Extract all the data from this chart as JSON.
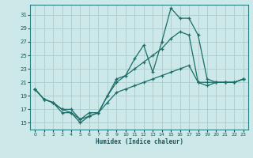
{
  "xlabel": "Humidex (Indice chaleur)",
  "background_color": "#cde8e8",
  "grid_color": "#a8cccc",
  "line_color": "#1a6e68",
  "xlim": [
    -0.5,
    23.5
  ],
  "ylim": [
    14.0,
    32.5
  ],
  "yticks": [
    15,
    17,
    19,
    21,
    23,
    25,
    27,
    29,
    31
  ],
  "xticks": [
    0,
    1,
    2,
    3,
    4,
    5,
    6,
    7,
    8,
    9,
    10,
    11,
    12,
    13,
    14,
    15,
    16,
    17,
    18,
    19,
    20,
    21,
    22,
    23
  ],
  "lines": [
    {
      "x": [
        0,
        1,
        2,
        3,
        4,
        5,
        6,
        7,
        8,
        9,
        10,
        11,
        12,
        13,
        14,
        15,
        16,
        17,
        18,
        19,
        20,
        21,
        22,
        23
      ],
      "y": [
        20,
        18.5,
        18,
        16.5,
        16.5,
        15,
        16,
        16.5,
        19,
        21.5,
        22,
        24.5,
        26.5,
        22.5,
        27,
        32,
        30.5,
        30.5,
        28,
        21.5,
        21,
        21,
        21,
        21.5
      ]
    },
    {
      "x": [
        0,
        1,
        2,
        3,
        4,
        5,
        6,
        7,
        8,
        9,
        10,
        11,
        12,
        13,
        14,
        15,
        16,
        17,
        18,
        19,
        20,
        21,
        22,
        23
      ],
      "y": [
        20,
        18.5,
        18,
        17,
        17,
        15.5,
        16.5,
        16.5,
        19,
        21,
        22,
        23,
        24,
        25,
        26,
        27.5,
        28.5,
        28,
        21,
        21,
        21,
        21,
        21,
        21.5
      ]
    },
    {
      "x": [
        0,
        1,
        2,
        3,
        4,
        5,
        6,
        7,
        8,
        9,
        10,
        11,
        12,
        13,
        14,
        15,
        16,
        17,
        18,
        19,
        20,
        21,
        22,
        23
      ],
      "y": [
        20,
        18.5,
        18,
        17,
        16.5,
        15.5,
        16,
        16.5,
        18,
        19.5,
        20,
        20.5,
        21,
        21.5,
        22,
        22.5,
        23,
        23.5,
        21,
        20.5,
        21,
        21,
        21,
        21.5
      ]
    }
  ]
}
